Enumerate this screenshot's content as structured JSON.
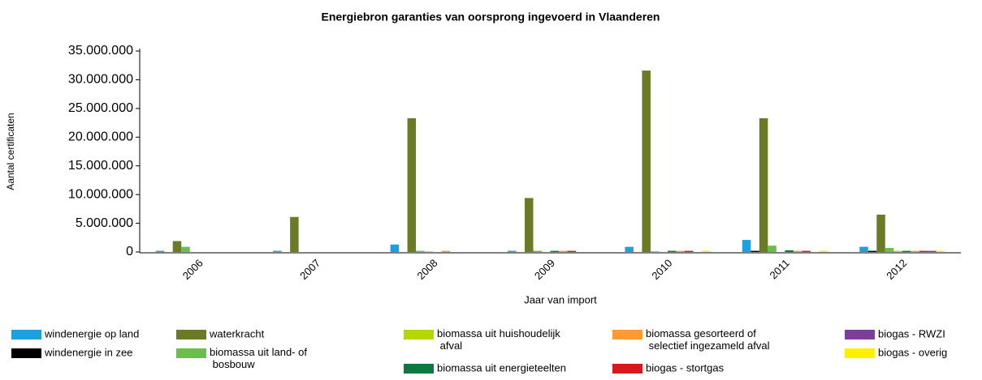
{
  "chart_data": {
    "type": "bar",
    "title": "Energiebron garanties van oorsprong ingevoerd in Vlaanderen",
    "x_label": "Jaar van import",
    "y_label": "Aantal certificaten",
    "categories": [
      "2006",
      "2007",
      "2008",
      "2009",
      "2010",
      "2011",
      "2012"
    ],
    "series": [
      {
        "name": "windenergie op land",
        "color": "#1e9fe0",
        "values": [
          200000,
          200000,
          1300000,
          200000,
          900000,
          2100000,
          900000
        ]
      },
      {
        "name": "windenergie in zee",
        "color": "#000000",
        "values": [
          0,
          0,
          0,
          0,
          0,
          200000,
          200000
        ]
      },
      {
        "name": "waterkracht",
        "color": "#6b7a25",
        "values": [
          1900000,
          6100000,
          23300000,
          9400000,
          31600000,
          23300000,
          6500000
        ]
      },
      {
        "name": "biomassa uit land- of bosbouw",
        "color": "#6abf4b",
        "values": [
          900000,
          0,
          200000,
          200000,
          100000,
          1100000,
          700000
        ]
      },
      {
        "name": "biomassa uit huishoudelijk afval",
        "color": "#b5d900",
        "values": [
          0,
          0,
          100000,
          0,
          0,
          0,
          200000
        ]
      },
      {
        "name": "biomassa uit energieteelten",
        "color": "#0b7a3c",
        "values": [
          0,
          0,
          0,
          200000,
          200000,
          300000,
          200000
        ]
      },
      {
        "name": "biomassa gesorteerd of selectief ingezameld afval",
        "color": "#ff9933",
        "values": [
          0,
          0,
          200000,
          200000,
          200000,
          200000,
          200000
        ]
      },
      {
        "name": "biogas - stortgas",
        "color": "#d7191c",
        "values": [
          0,
          0,
          0,
          200000,
          200000,
          200000,
          200000
        ]
      },
      {
        "name": "biogas - RWZI",
        "color": "#7b3f98",
        "values": [
          0,
          0,
          0,
          0,
          0,
          0,
          200000
        ]
      },
      {
        "name": "biogas - overig",
        "color": "#ffef00",
        "values": [
          0,
          0,
          0,
          0,
          200000,
          200000,
          200000
        ]
      }
    ],
    "ylim": [
      0,
      35000000
    ],
    "yticks": [
      0,
      {
        "value": 5000000,
        "label": "5.000.000"
      },
      {
        "value": 10000000,
        "label": "10.000.000"
      },
      {
        "value": 15000000,
        "label": "15.000.000"
      },
      {
        "value": 20000000,
        "label": "20.000.000"
      },
      {
        "value": 25000000,
        "label": "25.000.000"
      },
      {
        "value": 30000000,
        "label": "30.000.000"
      },
      {
        "value": 35000000,
        "label": "35.000.000"
      }
    ],
    "grid": false
  }
}
